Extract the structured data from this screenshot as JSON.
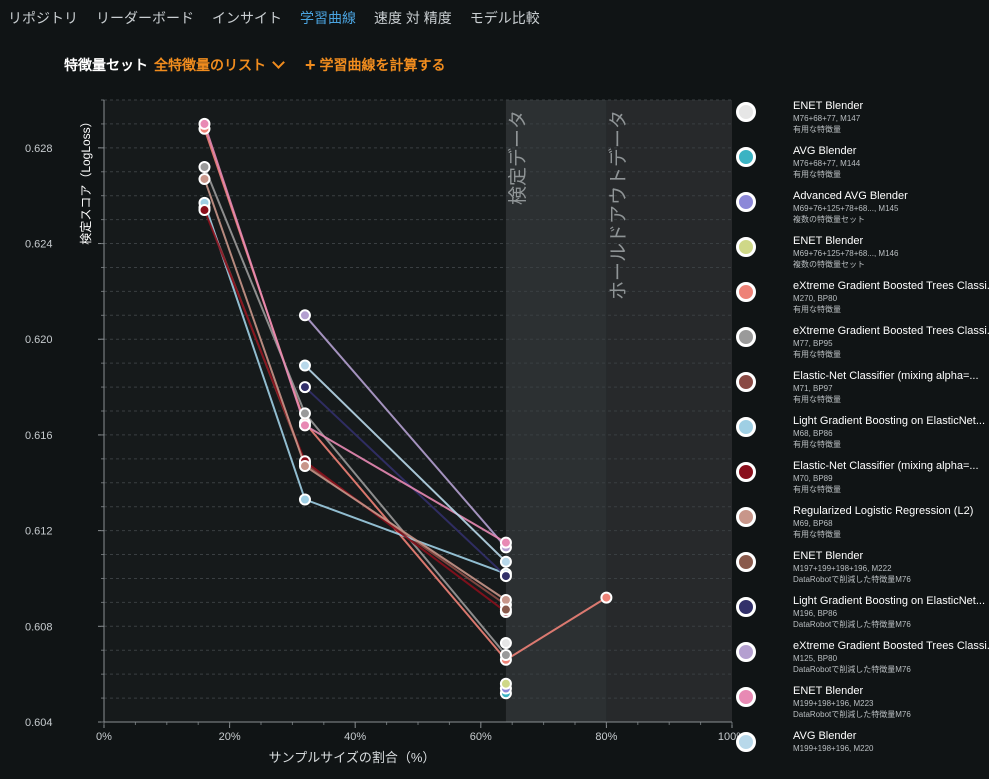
{
  "nav": {
    "tabs": [
      {
        "label": "リポジトリ",
        "active": false
      },
      {
        "label": "リーダーボード",
        "active": false
      },
      {
        "label": "インサイト",
        "active": false
      },
      {
        "label": "学習曲線",
        "active": true
      },
      {
        "label": "速度 対 精度",
        "active": false
      },
      {
        "label": "モデル比較",
        "active": false
      }
    ]
  },
  "toolbar": {
    "feature_set_label": "特徴量セット",
    "feature_set_value": "全特徴量のリスト",
    "compute_plus": "+",
    "compute_label": "学習曲線を計算する"
  },
  "colors": {
    "accent": "#f08c1e",
    "active_tab": "#4aa3df",
    "background": "#101415"
  },
  "chart_data": {
    "type": "line",
    "xlabel": "サンプルサイズの割合（%）",
    "ylabel": "検定スコア（LogLoss）",
    "xlim": [
      0,
      100
    ],
    "ylim": [
      0.604,
      0.63
    ],
    "x_ticks": [
      "0%",
      "20%",
      "40%",
      "60%",
      "80%",
      "100%"
    ],
    "y_ticks": [
      "0.604",
      "0.608",
      "0.612",
      "0.616",
      "0.620",
      "0.624",
      "0.628"
    ],
    "grid": true,
    "legend_position": "right",
    "regions": [
      {
        "label": "検定データ",
        "x_start": 64,
        "x_end": 80
      },
      {
        "label": "ホールドアウトデータ",
        "x_start": 80,
        "x_end": 100
      }
    ],
    "series": [
      {
        "name": "ENET Blender",
        "line1": "M76+68+77, M147",
        "line2": "有用な特徴量",
        "color": "#e6e6e6",
        "x": [
          64
        ],
        "y": [
          0.6073
        ]
      },
      {
        "name": "AVG Blender",
        "line1": "M76+68+77, M144",
        "line2": "有用な特徴量",
        "color": "#3bb3c3",
        "x": [
          64
        ],
        "y": [
          0.6052
        ]
      },
      {
        "name": "Advanced AVG Blender",
        "line1": "M69+76+125+78+68..., M145",
        "line2": "複数の特徴量セット",
        "color": "#8c88d8",
        "x": [
          64
        ],
        "y": [
          0.6054
        ]
      },
      {
        "name": "ENET Blender",
        "line1": "M69+76+125+78+68..., M146",
        "line2": "複数の特徴量セット",
        "color": "#cfd888",
        "x": [
          64
        ],
        "y": [
          0.6056
        ]
      },
      {
        "name": "eXtreme Gradient Boosted Trees Classi...",
        "line1": "M270, BP80",
        "line2": "有用な特徴量",
        "color": "#ee8277",
        "x": [
          16,
          32,
          64,
          80
        ],
        "y": [
          0.6288,
          0.6165,
          0.6066,
          0.6092
        ]
      },
      {
        "name": "eXtreme Gradient Boosted Trees Classi...",
        "line1": "M77, BP95",
        "line2": "有用な特徴量",
        "color": "#9a9a9a",
        "x": [
          16,
          32,
          64
        ],
        "y": [
          0.6272,
          0.6169,
          0.6068
        ]
      },
      {
        "name": "Elastic-Net Classifier (mixing alpha=...",
        "line1": "M71, BP97",
        "line2": "有用な特徴量",
        "color": "#8a4a44",
        "x": [
          16,
          32,
          64
        ],
        "y": [
          0.6255,
          0.6148,
          0.6089
        ]
      },
      {
        "name": "Light Gradient Boosting on ElasticNet...",
        "line1": "M68, BP86",
        "line2": "有用な特徴量",
        "color": "#9fcfe4",
        "x": [
          16,
          32,
          64
        ],
        "y": [
          0.6257,
          0.6133,
          0.6102
        ]
      },
      {
        "name": "Elastic-Net Classifier (mixing alpha=...",
        "line1": "M70, BP89",
        "line2": "有用な特徴量",
        "color": "#8a0f1c",
        "x": [
          16,
          32,
          64
        ],
        "y": [
          0.6254,
          0.6149,
          0.6086
        ]
      },
      {
        "name": "Regularized Logistic Regression (L2)",
        "line1": "M69, BP68",
        "line2": "有用な特徴量",
        "color": "#c8968a",
        "x": [
          16,
          32,
          64
        ],
        "y": [
          0.6267,
          0.6147,
          0.6091
        ]
      },
      {
        "name": "ENET Blender",
        "line1": "M197+199+198+196, M222",
        "line2": "DataRobotで削減した特徴量M76",
        "color": "#8a5a4c",
        "x": [
          64
        ],
        "y": [
          0.6087
        ]
      },
      {
        "name": "Light Gradient Boosting on ElasticNet...",
        "line1": "M196, BP86",
        "line2": "DataRobotで削減した特徴量M76",
        "color": "#32306a",
        "x": [
          32,
          64
        ],
        "y": [
          0.618,
          0.6101
        ]
      },
      {
        "name": "eXtreme Gradient Boosted Trees Classi...",
        "line1": "M125, BP80",
        "line2": "DataRobotで削減した特徴量M76",
        "color": "#b4a0d0",
        "x": [
          32,
          64
        ],
        "y": [
          0.621,
          0.6113
        ]
      },
      {
        "name": "ENET Blender",
        "line1": "M199+198+196, M223",
        "line2": "DataRobotで削減した特徴量M76",
        "color": "#e88ab4",
        "x": [
          16,
          32,
          64
        ],
        "y": [
          0.629,
          0.6164,
          0.6115
        ]
      },
      {
        "name": "AVG Blender",
        "line1": "M199+198+196, M220",
        "line2": "DataRobotで削減した特徴量M76",
        "color": "#b8d8ea",
        "x": [
          32,
          64
        ],
        "y": [
          0.6189,
          0.6107
        ]
      }
    ]
  }
}
